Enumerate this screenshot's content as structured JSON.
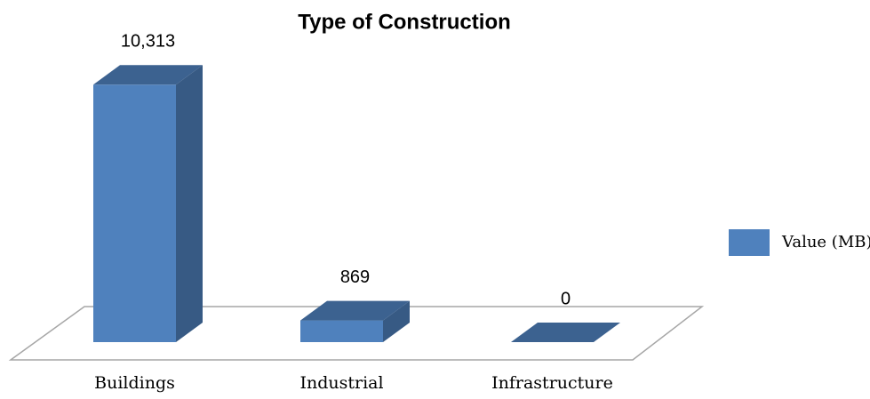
{
  "chart_data": {
    "type": "bar3d",
    "title": "Type of Construction",
    "categories": [
      "Buildings",
      "Industrial",
      "Infrastructure"
    ],
    "series": [
      {
        "name": "Value (MB)",
        "color": "#4f81bd",
        "values": [
          10313,
          869,
          0
        ],
        "value_labels": [
          "10,313",
          "869",
          "0"
        ]
      }
    ],
    "ylim": [
      0,
      11000
    ],
    "legend": "right"
  }
}
